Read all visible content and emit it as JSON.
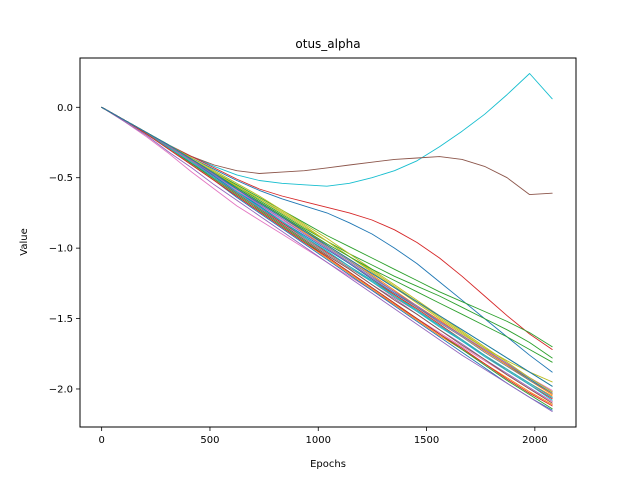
{
  "chart_data": {
    "type": "line",
    "title": "otus_alpha",
    "xlabel": "Epochs",
    "ylabel": "Value",
    "xlim": [
      -100,
      2190
    ],
    "ylim": [
      -2.27,
      0.35
    ],
    "x_ticks": [
      0,
      500,
      1000,
      1500,
      2000
    ],
    "x_tick_labels": [
      "0",
      "500",
      "1000",
      "1500",
      "2000"
    ],
    "y_ticks": [
      0.0,
      -0.5,
      -1.0,
      -1.5,
      -2.0
    ],
    "y_tick_labels": [
      "0.0",
      "−0.5",
      "−1.0",
      "−1.5",
      "−2.0"
    ],
    "grid": false,
    "legend": "none",
    "x": [
      0,
      104,
      208,
      312,
      416,
      520,
      624,
      728,
      832,
      936,
      1040,
      1144,
      1248,
      1352,
      1456,
      1560,
      1664,
      1768,
      1872,
      1976,
      2080
    ],
    "series": [
      {
        "color": "#17becf",
        "values": [
          0.0,
          -0.09,
          -0.18,
          -0.27,
          -0.35,
          -0.42,
          -0.48,
          -0.52,
          -0.54,
          -0.55,
          -0.56,
          -0.54,
          -0.5,
          -0.45,
          -0.38,
          -0.28,
          -0.17,
          -0.05,
          0.09,
          0.24,
          0.06
        ]
      },
      {
        "color": "#8c564b",
        "values": [
          0.0,
          -0.09,
          -0.18,
          -0.27,
          -0.35,
          -0.41,
          -0.45,
          -0.47,
          -0.46,
          -0.45,
          -0.43,
          -0.41,
          -0.39,
          -0.37,
          -0.36,
          -0.35,
          -0.37,
          -0.42,
          -0.5,
          -0.62,
          -0.61
        ]
      },
      {
        "color": "#d62728",
        "values": [
          0.0,
          -0.09,
          -0.18,
          -0.27,
          -0.35,
          -0.43,
          -0.51,
          -0.58,
          -0.63,
          -0.67,
          -0.71,
          -0.75,
          -0.8,
          -0.87,
          -0.96,
          -1.07,
          -1.2,
          -1.34,
          -1.48,
          -1.61,
          -1.72
        ]
      },
      {
        "color": "#1f77b4",
        "values": [
          0.0,
          -0.09,
          -0.18,
          -0.27,
          -0.36,
          -0.44,
          -0.52,
          -0.59,
          -0.65,
          -0.7,
          -0.75,
          -0.82,
          -0.9,
          -1.0,
          -1.11,
          -1.24,
          -1.37,
          -1.5,
          -1.63,
          -1.76,
          -1.88
        ]
      },
      {
        "color": "#2ca02c",
        "values": [
          0.0,
          -0.09,
          -0.18,
          -0.27,
          -0.37,
          -0.46,
          -0.55,
          -0.64,
          -0.73,
          -0.82,
          -0.91,
          -0.99,
          -1.07,
          -1.15,
          -1.23,
          -1.31,
          -1.38,
          -1.45,
          -1.52,
          -1.6,
          -1.7
        ]
      },
      {
        "color": "#2ca02c",
        "values": [
          0.0,
          -0.09,
          -0.18,
          -0.27,
          -0.37,
          -0.46,
          -0.56,
          -0.66,
          -0.76,
          -0.86,
          -0.95,
          -1.04,
          -1.12,
          -1.2,
          -1.27,
          -1.34,
          -1.42,
          -1.5,
          -1.58,
          -1.67,
          -1.78
        ]
      },
      {
        "color": "#bcbd22",
        "values": [
          0.0,
          -0.09,
          -0.18,
          -0.27,
          -0.37,
          -0.47,
          -0.56,
          -0.65,
          -0.74,
          -0.84,
          -0.95,
          -1.06,
          -1.17,
          -1.28,
          -1.39,
          -1.5,
          -1.61,
          -1.71,
          -1.8,
          -1.88,
          -1.95
        ]
      },
      {
        "color": "#ff7f0e",
        "values": [
          0.0,
          -0.09,
          -0.18,
          -0.28,
          -0.38,
          -0.48,
          -0.58,
          -0.68,
          -0.78,
          -0.89,
          -1.0,
          -1.11,
          -1.22,
          -1.33,
          -1.44,
          -1.55,
          -1.66,
          -1.76,
          -1.86,
          -1.96,
          -2.05
        ]
      },
      {
        "color": "#9467bd",
        "values": [
          0.0,
          -0.09,
          -0.19,
          -0.29,
          -0.39,
          -0.5,
          -0.61,
          -0.72,
          -0.83,
          -0.94,
          -1.05,
          -1.15,
          -1.26,
          -1.36,
          -1.47,
          -1.58,
          -1.68,
          -1.79,
          -1.89,
          -1.99,
          -2.09
        ]
      },
      {
        "color": "#e377c2",
        "values": [
          0.0,
          -0.1,
          -0.21,
          -0.33,
          -0.46,
          -0.58,
          -0.7,
          -0.8,
          -0.9,
          -1.0,
          -1.1,
          -1.2,
          -1.3,
          -1.4,
          -1.5,
          -1.6,
          -1.7,
          -1.8,
          -1.9,
          -2.0,
          -2.09
        ]
      },
      {
        "color": "#7f7f7f",
        "values": [
          0.0,
          -0.09,
          -0.18,
          -0.29,
          -0.4,
          -0.5,
          -0.6,
          -0.71,
          -0.82,
          -0.93,
          -1.04,
          -1.14,
          -1.24,
          -1.35,
          -1.45,
          -1.55,
          -1.66,
          -1.76,
          -1.86,
          -1.96,
          -2.06
        ]
      },
      {
        "color": "#1f77b4",
        "values": [
          0.0,
          -0.09,
          -0.19,
          -0.3,
          -0.41,
          -0.52,
          -0.64,
          -0.75,
          -0.86,
          -0.97,
          -1.08,
          -1.19,
          -1.3,
          -1.41,
          -1.52,
          -1.63,
          -1.74,
          -1.85,
          -1.96,
          -2.06,
          -2.15
        ]
      },
      {
        "color": "#9467bd",
        "values": [
          0.0,
          -0.1,
          -0.2,
          -0.32,
          -0.43,
          -0.55,
          -0.66,
          -0.77,
          -0.88,
          -0.99,
          -1.1,
          -1.21,
          -1.32,
          -1.43,
          -1.54,
          -1.65,
          -1.76,
          -1.86,
          -1.96,
          -2.06,
          -2.16
        ]
      },
      {
        "color": "#ff7f0e",
        "values": [
          0.0,
          -0.09,
          -0.19,
          -0.3,
          -0.41,
          -0.52,
          -0.63,
          -0.74,
          -0.85,
          -0.96,
          -1.07,
          -1.18,
          -1.29,
          -1.4,
          -1.51,
          -1.62,
          -1.72,
          -1.82,
          -1.92,
          -2.02,
          -2.11
        ]
      },
      {
        "color": "#2ca02c",
        "values": [
          0.0,
          -0.09,
          -0.18,
          -0.28,
          -0.38,
          -0.48,
          -0.58,
          -0.68,
          -0.78,
          -0.88,
          -0.98,
          -1.08,
          -1.18,
          -1.28,
          -1.38,
          -1.48,
          -1.58,
          -1.68,
          -1.78,
          -1.88,
          -1.98
        ]
      },
      {
        "color": "#d62728",
        "values": [
          0.0,
          -0.09,
          -0.19,
          -0.29,
          -0.39,
          -0.49,
          -0.6,
          -0.71,
          -0.82,
          -0.92,
          -1.03,
          -1.13,
          -1.23,
          -1.33,
          -1.43,
          -1.54,
          -1.65,
          -1.76,
          -1.87,
          -1.97,
          -2.07
        ]
      },
      {
        "color": "#17becf",
        "values": [
          0.0,
          -0.09,
          -0.18,
          -0.28,
          -0.38,
          -0.48,
          -0.59,
          -0.7,
          -0.81,
          -0.92,
          -1.02,
          -1.13,
          -1.24,
          -1.34,
          -1.45,
          -1.56,
          -1.66,
          -1.77,
          -1.87,
          -1.97,
          -2.08
        ]
      },
      {
        "color": "#bcbd22",
        "values": [
          0.0,
          -0.09,
          -0.18,
          -0.27,
          -0.37,
          -0.46,
          -0.56,
          -0.65,
          -0.75,
          -0.85,
          -0.95,
          -1.06,
          -1.16,
          -1.27,
          -1.38,
          -1.49,
          -1.6,
          -1.71,
          -1.82,
          -1.93,
          -2.03
        ]
      },
      {
        "color": "#8c564b",
        "values": [
          0.0,
          -0.09,
          -0.19,
          -0.29,
          -0.39,
          -0.5,
          -0.61,
          -0.72,
          -0.83,
          -0.94,
          -1.05,
          -1.15,
          -1.26,
          -1.37,
          -1.47,
          -1.58,
          -1.69,
          -1.79,
          -1.9,
          -2.0,
          -2.1
        ]
      },
      {
        "color": "#e377c2",
        "values": [
          0.0,
          -0.09,
          -0.18,
          -0.28,
          -0.39,
          -0.49,
          -0.59,
          -0.69,
          -0.8,
          -0.9,
          -1.0,
          -1.11,
          -1.21,
          -1.31,
          -1.41,
          -1.52,
          -1.62,
          -1.72,
          -1.82,
          -1.92,
          -2.01
        ]
      },
      {
        "color": "#1f77b4",
        "values": [
          0.0,
          -0.09,
          -0.18,
          -0.28,
          -0.38,
          -0.49,
          -0.6,
          -0.7,
          -0.81,
          -0.91,
          -1.01,
          -1.11,
          -1.22,
          -1.32,
          -1.42,
          -1.52,
          -1.62,
          -1.73,
          -1.83,
          -1.93,
          -2.03
        ]
      },
      {
        "color": "#ff7f0e",
        "values": [
          0.0,
          -0.09,
          -0.18,
          -0.28,
          -0.38,
          -0.47,
          -0.57,
          -0.67,
          -0.77,
          -0.87,
          -0.98,
          -1.08,
          -1.19,
          -1.3,
          -1.41,
          -1.51,
          -1.62,
          -1.73,
          -1.83,
          -1.94,
          -2.04
        ]
      },
      {
        "color": "#2ca02c",
        "values": [
          0.0,
          -0.09,
          -0.19,
          -0.29,
          -0.4,
          -0.51,
          -0.62,
          -0.73,
          -0.84,
          -0.95,
          -1.06,
          -1.17,
          -1.28,
          -1.39,
          -1.5,
          -1.61,
          -1.72,
          -1.83,
          -1.94,
          -2.04,
          -2.14
        ]
      },
      {
        "color": "#7f7f7f",
        "values": [
          0.0,
          -0.09,
          -0.18,
          -0.27,
          -0.37,
          -0.47,
          -0.57,
          -0.67,
          -0.77,
          -0.88,
          -0.99,
          -1.09,
          -1.2,
          -1.31,
          -1.42,
          -1.53,
          -1.63,
          -1.74,
          -1.84,
          -1.94,
          -2.03
        ]
      },
      {
        "color": "#9467bd",
        "values": [
          0.0,
          -0.09,
          -0.18,
          -0.28,
          -0.38,
          -0.48,
          -0.58,
          -0.69,
          -0.79,
          -0.9,
          -1.0,
          -1.1,
          -1.21,
          -1.31,
          -1.41,
          -1.52,
          -1.62,
          -1.72,
          -1.82,
          -1.92,
          -2.02
        ]
      },
      {
        "color": "#17becf",
        "values": [
          0.0,
          -0.09,
          -0.19,
          -0.29,
          -0.39,
          -0.5,
          -0.6,
          -0.71,
          -0.81,
          -0.92,
          -1.02,
          -1.13,
          -1.23,
          -1.34,
          -1.44,
          -1.55,
          -1.65,
          -1.76,
          -1.86,
          -1.96,
          -2.06
        ]
      },
      {
        "color": "#bcbd22",
        "values": [
          0.0,
          -0.09,
          -0.18,
          -0.27,
          -0.36,
          -0.45,
          -0.54,
          -0.63,
          -0.73,
          -0.83,
          -0.93,
          -1.04,
          -1.15,
          -1.26,
          -1.37,
          -1.48,
          -1.59,
          -1.7,
          -1.81,
          -1.92,
          -2.02
        ]
      },
      {
        "color": "#2ca02c",
        "values": [
          0.0,
          -0.09,
          -0.18,
          -0.27,
          -0.37,
          -0.47,
          -0.57,
          -0.67,
          -0.77,
          -0.87,
          -0.97,
          -1.06,
          -1.15,
          -1.23,
          -1.31,
          -1.39,
          -1.47,
          -1.55,
          -1.63,
          -1.72,
          -1.81
        ]
      },
      {
        "color": "#d62728",
        "values": [
          0.0,
          -0.09,
          -0.19,
          -0.3,
          -0.41,
          -0.52,
          -0.63,
          -0.74,
          -0.85,
          -0.96,
          -1.06,
          -1.17,
          -1.28,
          -1.39,
          -1.5,
          -1.61,
          -1.71,
          -1.82,
          -1.93,
          -2.03,
          -2.12
        ]
      },
      {
        "color": "#1f77b4",
        "values": [
          0.0,
          -0.09,
          -0.18,
          -0.27,
          -0.37,
          -0.47,
          -0.58,
          -0.68,
          -0.78,
          -0.88,
          -0.98,
          -1.08,
          -1.18,
          -1.28,
          -1.38,
          -1.48,
          -1.58,
          -1.68,
          -1.78,
          -1.88,
          -1.98
        ]
      }
    ]
  }
}
